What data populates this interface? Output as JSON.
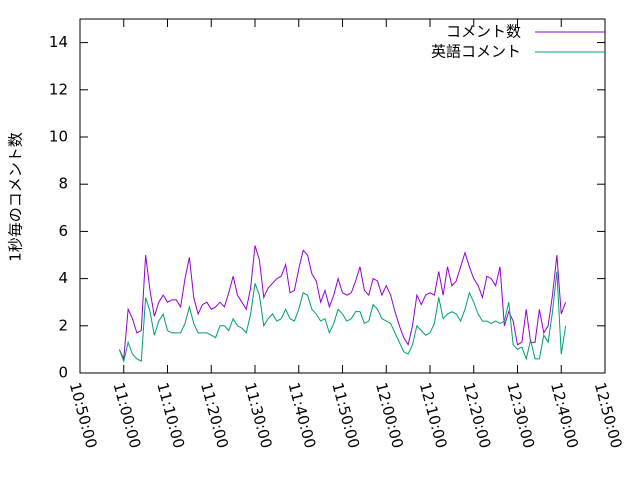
{
  "chart_data": {
    "type": "line",
    "ylabel": "1秒毎のコメント数",
    "x": [
      "10:59:00",
      "11:00:00",
      "11:01:00",
      "11:02:00",
      "11:03:00",
      "11:04:00",
      "11:05:00",
      "11:06:00",
      "11:07:00",
      "11:08:00",
      "11:09:00",
      "11:10:00",
      "11:11:00",
      "11:12:00",
      "11:13:00",
      "11:14:00",
      "11:15:00",
      "11:16:00",
      "11:17:00",
      "11:18:00",
      "11:19:00",
      "11:20:00",
      "11:21:00",
      "11:22:00",
      "11:23:00",
      "11:24:00",
      "11:25:00",
      "11:26:00",
      "11:27:00",
      "11:28:00",
      "11:29:00",
      "11:30:00",
      "11:31:00",
      "11:32:00",
      "11:33:00",
      "11:34:00",
      "11:35:00",
      "11:36:00",
      "11:37:00",
      "11:38:00",
      "11:39:00",
      "11:40:00",
      "11:41:00",
      "11:42:00",
      "11:43:00",
      "11:44:00",
      "11:45:00",
      "11:46:00",
      "11:47:00",
      "11:48:00",
      "11:49:00",
      "11:50:00",
      "11:51:00",
      "11:52:00",
      "11:53:00",
      "11:54:00",
      "11:55:00",
      "11:56:00",
      "11:57:00",
      "11:58:00",
      "11:59:00",
      "12:00:00",
      "12:01:00",
      "12:02:00",
      "12:03:00",
      "12:04:00",
      "12:05:00",
      "12:06:00",
      "12:07:00",
      "12:08:00",
      "12:09:00",
      "12:10:00",
      "12:11:00",
      "12:12:00",
      "12:13:00",
      "12:14:00",
      "12:15:00",
      "12:16:00",
      "12:17:00",
      "12:18:00",
      "12:19:00",
      "12:20:00",
      "12:21:00",
      "12:22:00",
      "12:23:00",
      "12:24:00",
      "12:25:00",
      "12:26:00",
      "12:27:00",
      "12:28:00",
      "12:29:00",
      "12:30:00",
      "12:31:00",
      "12:32:00",
      "12:33:00",
      "12:34:00",
      "12:35:00",
      "12:36:00",
      "12:37:00",
      "12:38:00",
      "12:39:00",
      "12:40:00",
      "12:41:00"
    ],
    "series": [
      {
        "name": "コメント数",
        "color": "#9400d3",
        "values": [
          1.0,
          0.6,
          2.7,
          2.3,
          1.7,
          1.8,
          5.0,
          3.5,
          2.4,
          3.0,
          3.3,
          3.0,
          3.1,
          3.1,
          2.8,
          4.0,
          4.9,
          3.2,
          2.5,
          2.9,
          3.0,
          2.7,
          2.8,
          3.0,
          2.8,
          3.4,
          4.1,
          3.3,
          3.0,
          2.7,
          3.6,
          5.4,
          4.8,
          3.2,
          3.6,
          3.8,
          4.0,
          4.1,
          4.6,
          3.4,
          3.5,
          4.4,
          5.2,
          5.0,
          4.2,
          3.9,
          3.0,
          3.5,
          2.8,
          3.3,
          4.0,
          3.4,
          3.3,
          3.4,
          3.9,
          4.5,
          3.5,
          3.3,
          4.0,
          3.9,
          3.3,
          3.7,
          3.3,
          2.6,
          2.0,
          1.5,
          1.2,
          2.0,
          3.3,
          2.9,
          3.3,
          3.4,
          3.3,
          4.3,
          3.3,
          4.5,
          3.7,
          3.9,
          4.5,
          5.1,
          4.5,
          4.0,
          3.7,
          3.2,
          4.1,
          4.0,
          3.7,
          4.5,
          2.0,
          2.6,
          2.2,
          1.2,
          1.3,
          2.7,
          1.3,
          1.3,
          2.7,
          1.7,
          2.0,
          3.3,
          5.0,
          2.5,
          3.0
        ]
      },
      {
        "name": "英語コメント",
        "color": "#009e73",
        "values": [
          1.0,
          0.5,
          1.3,
          0.8,
          0.6,
          0.5,
          3.2,
          2.6,
          1.6,
          2.2,
          2.5,
          1.8,
          1.7,
          1.7,
          1.7,
          2.1,
          2.8,
          2.1,
          1.7,
          1.7,
          1.7,
          1.6,
          1.5,
          2.0,
          2.0,
          1.8,
          2.3,
          2.0,
          1.9,
          1.7,
          2.5,
          3.8,
          3.3,
          2.0,
          2.3,
          2.5,
          2.2,
          2.3,
          2.7,
          2.3,
          2.2,
          2.7,
          3.4,
          3.3,
          2.7,
          2.5,
          2.2,
          2.3,
          1.7,
          2.1,
          2.7,
          2.5,
          2.2,
          2.3,
          2.6,
          2.6,
          2.1,
          2.2,
          2.9,
          2.7,
          2.3,
          2.2,
          2.1,
          1.7,
          1.3,
          0.9,
          0.8,
          1.2,
          2.0,
          1.8,
          1.6,
          1.7,
          2.1,
          3.2,
          2.3,
          2.5,
          2.6,
          2.5,
          2.2,
          2.7,
          3.4,
          3.0,
          2.5,
          2.2,
          2.2,
          2.1,
          2.2,
          2.1,
          2.2,
          3.0,
          1.2,
          1.0,
          1.1,
          0.6,
          1.4,
          0.6,
          0.6,
          1.6,
          1.3,
          2.6,
          4.3,
          0.8,
          2.0
        ]
      }
    ],
    "xlim": [
      "10:50:00",
      "12:50:00"
    ],
    "xticks": [
      "10:50:00",
      "11:00:00",
      "11:10:00",
      "11:20:00",
      "11:30:00",
      "11:40:00",
      "11:50:00",
      "12:00:00",
      "12:10:00",
      "12:20:00",
      "12:30:00",
      "12:40:00",
      "12:50:00"
    ],
    "ylim": [
      0,
      15
    ],
    "yticks": [
      0,
      2,
      4,
      6,
      8,
      10,
      12,
      14
    ],
    "legend": "top-right"
  }
}
